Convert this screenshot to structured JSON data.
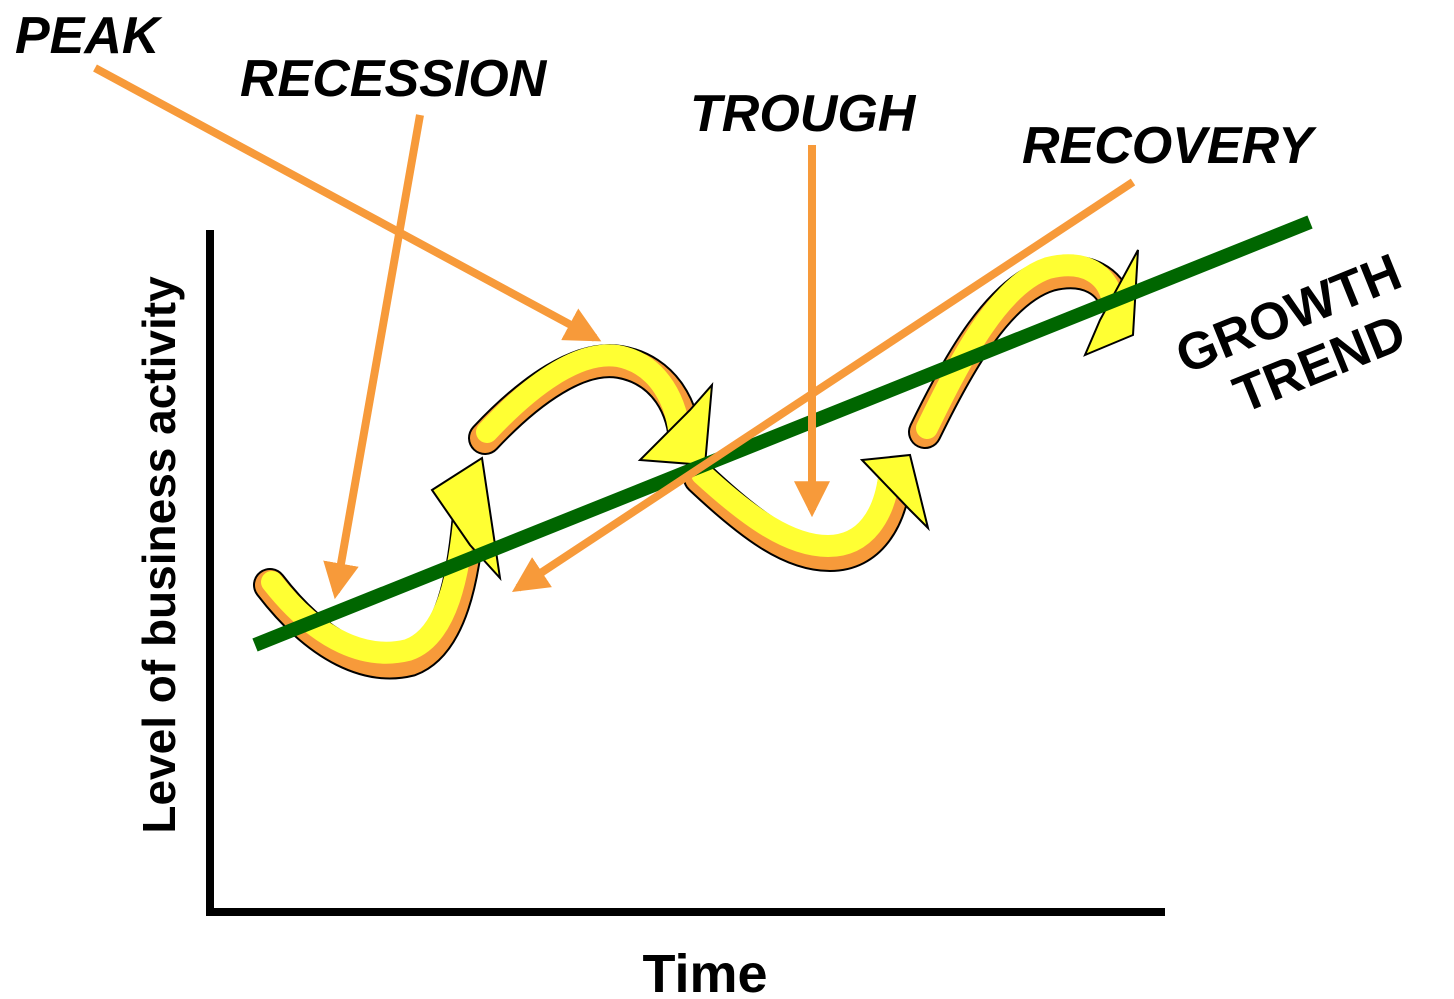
{
  "labels": {
    "peak": "PEAK",
    "recession": "RECESSION",
    "trough": "TROUGH",
    "recovery": "RECOVERY"
  },
  "trend": {
    "line1": "GROWTH",
    "line2": "TREND"
  },
  "axes": {
    "y_label": "Level of business activity",
    "x_label": "Time"
  }
}
